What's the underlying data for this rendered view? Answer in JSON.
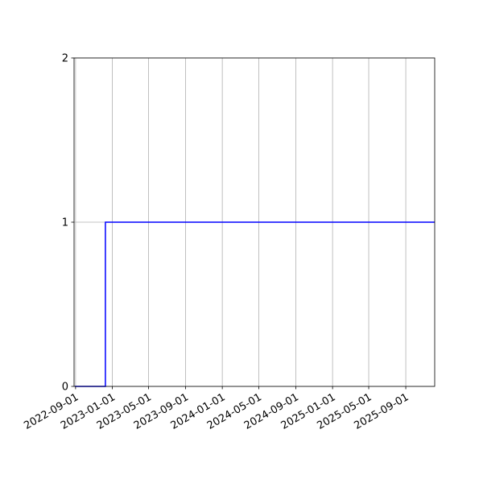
{
  "chart_data": {
    "type": "line",
    "step": true,
    "title": "",
    "xlabel": "",
    "ylabel": "",
    "xlim": [
      "2022-08-27",
      "2025-12-06"
    ],
    "ylim": [
      0,
      2
    ],
    "grid": true,
    "x_ticks": [
      "2022-09-01",
      "2023-01-01",
      "2023-05-01",
      "2023-09-01",
      "2024-01-01",
      "2024-05-01",
      "2024-09-01",
      "2025-01-01",
      "2025-05-01",
      "2025-09-01"
    ],
    "y_ticks": [
      0,
      1,
      2
    ],
    "series": [
      {
        "color": "#0000ff",
        "x": [
          "2022-08-30",
          "2022-12-09",
          "2025-12-06"
        ],
        "y": [
          0,
          1,
          1
        ]
      }
    ]
  }
}
